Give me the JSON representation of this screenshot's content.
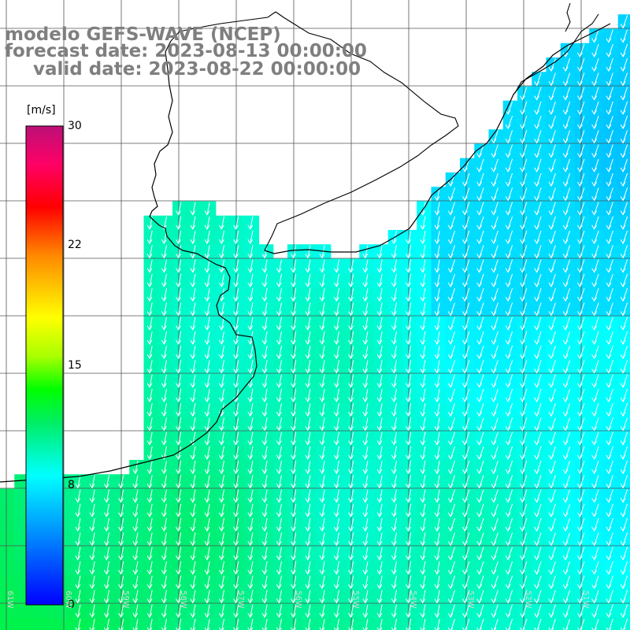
{
  "title": {
    "line1": "modelo GEFS-WAVE (NCEP)",
    "line2": "forecast date: 2023-08-13 00:00:00",
    "line3": "valid date: 2023-08-22 00:00:00"
  },
  "colorbar": {
    "units": "[m/s]",
    "ticks": [
      "30",
      "22",
      "15",
      "8",
      "0"
    ],
    "tick_values": [
      30,
      22,
      15,
      8,
      0
    ],
    "range": [
      0,
      30
    ],
    "colors": [
      "#0000ff",
      "#00aaff",
      "#00ffff",
      "#00e060",
      "#00ff00",
      "#aaff00",
      "#ffff00",
      "#ff8800",
      "#ff0000",
      "#ff0066",
      "#cc0088",
      "#bb1077"
    ]
  },
  "map": {
    "lon_labels": [
      "61W",
      "60W",
      "59W",
      "58W",
      "57W",
      "56W",
      "55W",
      "54W",
      "53W",
      "52W",
      "51W"
    ],
    "gridline_color": "#555555",
    "coastline_color": "#000000",
    "arrow_color": "#ffffff",
    "wind_direction": "from north-northeast (arrows pointing south)"
  },
  "wind_field_ms": {
    "description": "wind speed over ocean, m/s",
    "southwest_open_ocean": 12,
    "central_shelf": 10,
    "coast_near_northeast": 7,
    "far_east": 6
  }
}
